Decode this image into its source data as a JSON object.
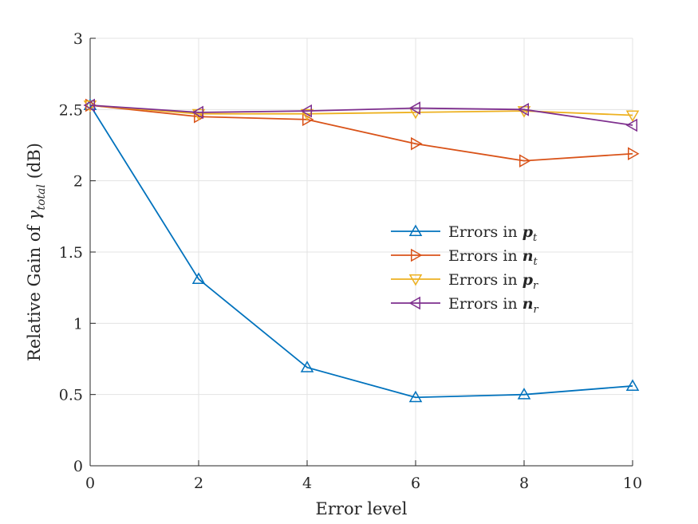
{
  "chart_data": {
    "type": "line",
    "title": "",
    "xlabel": "Error level",
    "ylabel": {
      "prefix": "Relative Gain of ",
      "symbol": "γ",
      "subscript": "total",
      "suffix": " (dB)"
    },
    "x": [
      0,
      2,
      4,
      6,
      8,
      10
    ],
    "xlim": [
      0,
      10
    ],
    "ylim": [
      0,
      3
    ],
    "xticks": [
      "0",
      "2",
      "4",
      "6",
      "8",
      "10"
    ],
    "yticks": [
      "0",
      "0.5",
      "1",
      "1.5",
      "2",
      "2.5",
      "3"
    ],
    "grid": true,
    "legend_position": "center-right",
    "series": [
      {
        "legend_text": "Errors in ",
        "legend_var": "p",
        "legend_sub": "t",
        "color": "#0072BD",
        "marker": "triangle-up",
        "values": [
          2.53,
          1.31,
          0.69,
          0.48,
          0.5,
          0.56
        ]
      },
      {
        "legend_text": "Errors in ",
        "legend_var": "n",
        "legend_sub": "t",
        "color": "#D95319",
        "marker": "triangle-right",
        "values": [
          2.53,
          2.45,
          2.43,
          2.26,
          2.14,
          2.19
        ]
      },
      {
        "legend_text": "Errors in ",
        "legend_var": "p",
        "legend_sub": "r",
        "color": "#EDB120",
        "marker": "triangle-down",
        "values": [
          2.53,
          2.47,
          2.47,
          2.48,
          2.49,
          2.46
        ]
      },
      {
        "legend_text": "Errors in ",
        "legend_var": "n",
        "legend_sub": "r",
        "color": "#7E2F8E",
        "marker": "triangle-left",
        "values": [
          2.53,
          2.48,
          2.49,
          2.51,
          2.5,
          2.39
        ]
      }
    ]
  }
}
